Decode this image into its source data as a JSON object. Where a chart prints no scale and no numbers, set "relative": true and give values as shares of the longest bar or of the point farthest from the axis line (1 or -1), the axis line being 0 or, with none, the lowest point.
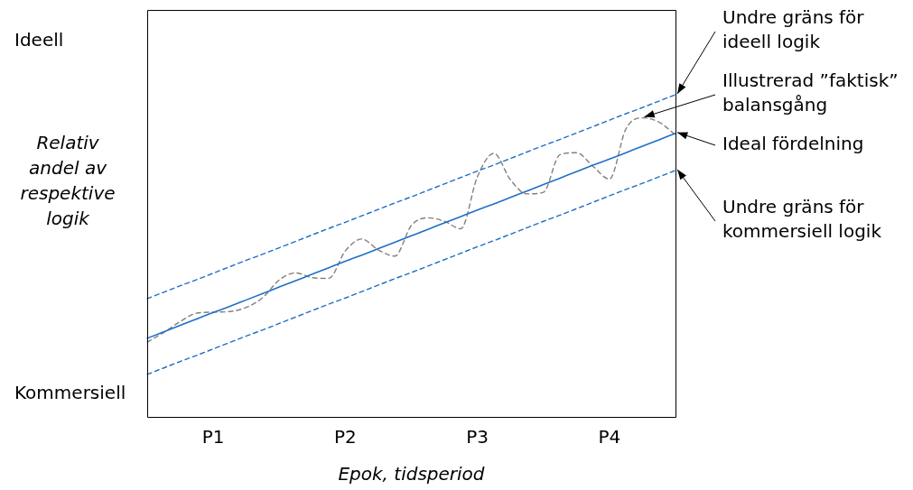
{
  "chart_data": {
    "type": "line",
    "relative": true,
    "xlabel": "Epok, tidsperiod",
    "ylabel": "Relativ\nandel av\nrespektive\nlogik",
    "categories": [
      null,
      null,
      null,
      null,
      "P1",
      null,
      null,
      null,
      null,
      null,
      null,
      null,
      "P2",
      null,
      null,
      null,
      null,
      null,
      null,
      null,
      "P3",
      null,
      null,
      null,
      null,
      null,
      null,
      null,
      "P4",
      null,
      null,
      null,
      null
    ],
    "grid": false,
    "legend": false,
    "marker": "none",
    "series": [
      {
        "name": "Undre gräns för\nideell logik",
        "color": "#1f6fc5",
        "line_style": "dashed",
        "values": [
          0.367,
          0.387,
          0.407,
          0.426,
          0.446,
          0.466,
          0.486,
          0.505,
          0.525,
          0.545,
          0.565,
          0.585,
          0.604,
          0.624,
          0.644,
          0.664,
          0.683,
          0.703,
          0.723,
          0.743,
          0.763,
          0.782,
          0.802,
          0.822,
          0.842,
          0.861,
          0.881,
          0.901,
          0.921,
          0.941,
          0.96,
          0.98,
          1.0
        ]
      },
      {
        "name": "Ideal fördelning",
        "color": "#1f6fc5",
        "line_style": "solid",
        "values": [
          0.244,
          0.264,
          0.284,
          0.304,
          0.324,
          0.343,
          0.363,
          0.383,
          0.403,
          0.423,
          0.443,
          0.463,
          0.483,
          0.502,
          0.522,
          0.542,
          0.562,
          0.582,
          0.602,
          0.622,
          0.642,
          0.661,
          0.681,
          0.701,
          0.721,
          0.741,
          0.761,
          0.781,
          0.8,
          0.82,
          0.84,
          0.86,
          0.88
        ]
      },
      {
        "name": "Undre gräns för\nkommersiell logik",
        "color": "#1f6fc5",
        "line_style": "dashed",
        "values": [
          0.132,
          0.152,
          0.172,
          0.191,
          0.211,
          0.231,
          0.251,
          0.27,
          0.29,
          0.31,
          0.33,
          0.35,
          0.369,
          0.389,
          0.409,
          0.429,
          0.448,
          0.468,
          0.488,
          0.508,
          0.528,
          0.547,
          0.567,
          0.587,
          0.607,
          0.626,
          0.646,
          0.666,
          0.686,
          0.706,
          0.725,
          0.745,
          0.765
        ]
      },
      {
        "name": "Illustrerad ”faktisk”\nbalansgång",
        "color": "#808080",
        "line_style": "dashed",
        "values": [
          0.232,
          0.262,
          0.296,
          0.322,
          0.325,
          0.327,
          0.34,
          0.37,
          0.425,
          0.447,
          0.432,
          0.43,
          0.515,
          0.552,
          0.518,
          0.499,
          0.594,
          0.618,
          0.607,
          0.584,
          0.745,
          0.818,
          0.736,
          0.692,
          0.697,
          0.814,
          0.82,
          0.778,
          0.738,
          0.894,
          0.928,
          0.915,
          0.875
        ]
      }
    ],
    "annotations": [
      "Ideell",
      "Kommersiell"
    ]
  }
}
